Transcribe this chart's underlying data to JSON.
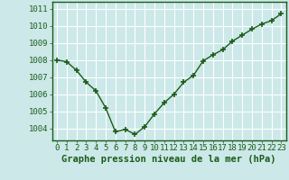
{
  "x": [
    0,
    1,
    2,
    3,
    4,
    5,
    6,
    7,
    8,
    9,
    10,
    11,
    12,
    13,
    14,
    15,
    16,
    17,
    18,
    19,
    20,
    21,
    22,
    23
  ],
  "y": [
    1008.0,
    1007.9,
    1007.4,
    1006.7,
    1006.2,
    1005.2,
    1003.8,
    1003.95,
    1003.65,
    1004.1,
    1004.85,
    1005.5,
    1006.0,
    1006.7,
    1007.1,
    1007.95,
    1008.3,
    1008.6,
    1009.1,
    1009.45,
    1009.8,
    1010.1,
    1010.3,
    1010.7
  ],
  "line_color": "#1a5c1a",
  "marker": "+",
  "background_color": "#cce8e8",
  "grid_color": "#ffffff",
  "ylabel_ticks": [
    1004,
    1005,
    1006,
    1007,
    1008,
    1009,
    1010,
    1011
  ],
  "xlabel": "Graphe pression niveau de la mer (hPa)",
  "xlim": [
    -0.5,
    23.5
  ],
  "ylim": [
    1003.3,
    1011.4
  ],
  "tick_label_color": "#1a5c1a",
  "xlabel_color": "#1a5c1a",
  "xlabel_fontsize": 7.5,
  "tick_fontsize": 6.5
}
